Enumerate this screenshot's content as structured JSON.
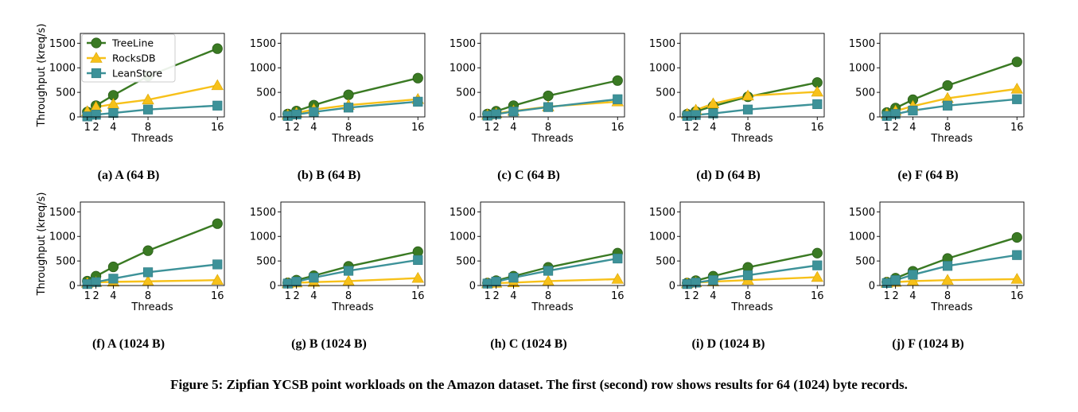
{
  "figure_caption": "Figure 5: Zipfian YCSB point workloads on the Amazon dataset. The first (second) row shows results for 64 (1024) byte records.",
  "colors": {
    "TreeLine": "#3a7a23",
    "RocksDB": "#f7c11a",
    "LeanStore": "#3d9299"
  },
  "markers": {
    "TreeLine": "circle",
    "RocksDB": "triangle",
    "LeanStore": "square"
  },
  "legend": {
    "placement": "top-left",
    "shown_in": "subplot (a)"
  },
  "chart_data": [
    {
      "id": "a",
      "caption": "(a) A (64 B)",
      "type": "line",
      "xlabel": "Threads",
      "ylabel": "Throughput (kreq/s)",
      "x": [
        1,
        2,
        4,
        8,
        16
      ],
      "x_ticks": [
        "1",
        "2",
        "4",
        "8",
        "16"
      ],
      "ylim": [
        0,
        1700
      ],
      "y_ticks": [
        "0",
        "500",
        "1000",
        "1500"
      ],
      "series": [
        {
          "name": "TreeLine",
          "values": [
            100,
            230,
            440,
            830,
            1390
          ]
        },
        {
          "name": "RocksDB",
          "values": [
            110,
            200,
            260,
            350,
            640
          ]
        },
        {
          "name": "LeanStore",
          "values": [
            10,
            45,
            80,
            150,
            230
          ]
        }
      ]
    },
    {
      "id": "b",
      "caption": "(b) B (64 B)",
      "type": "line",
      "xlabel": "Threads",
      "ylabel": "",
      "x": [
        1,
        2,
        4,
        8,
        16
      ],
      "x_ticks": [
        "1",
        "2",
        "4",
        "8",
        "16"
      ],
      "ylim": [
        0,
        1700
      ],
      "y_ticks": [
        "0",
        "500",
        "1000",
        "1500"
      ],
      "series": [
        {
          "name": "TreeLine",
          "values": [
            60,
            120,
            240,
            450,
            790
          ]
        },
        {
          "name": "RocksDB",
          "values": [
            40,
            80,
            150,
            240,
            360
          ]
        },
        {
          "name": "LeanStore",
          "values": [
            20,
            50,
            100,
            190,
            310
          ]
        }
      ]
    },
    {
      "id": "c",
      "caption": "(c) C (64 B)",
      "type": "line",
      "xlabel": "Threads",
      "ylabel": "",
      "x": [
        1,
        2,
        4,
        8,
        16
      ],
      "x_ticks": [
        "1",
        "2",
        "4",
        "8",
        "16"
      ],
      "ylim": [
        0,
        1700
      ],
      "y_ticks": [
        "0",
        "500",
        "1000",
        "1500"
      ],
      "series": [
        {
          "name": "TreeLine",
          "values": [
            60,
            115,
            230,
            430,
            740
          ]
        },
        {
          "name": "RocksDB",
          "values": [
            40,
            70,
            120,
            210,
            310
          ]
        },
        {
          "name": "LeanStore",
          "values": [
            25,
            55,
            110,
            200,
            360
          ]
        }
      ]
    },
    {
      "id": "d",
      "caption": "(d) D (64 B)",
      "type": "line",
      "xlabel": "Threads",
      "ylabel": "",
      "x": [
        1,
        2,
        4,
        8,
        16
      ],
      "x_ticks": [
        "1",
        "2",
        "4",
        "8",
        "16"
      ],
      "ylim": [
        0,
        1700
      ],
      "y_ticks": [
        "0",
        "500",
        "1000",
        "1500"
      ],
      "series": [
        {
          "name": "TreeLine",
          "values": [
            55,
            110,
            220,
            410,
            700
          ]
        },
        {
          "name": "RocksDB",
          "values": [
            60,
            140,
            270,
            430,
            510
          ]
        },
        {
          "name": "LeanStore",
          "values": [
            20,
            40,
            70,
            150,
            260
          ]
        }
      ]
    },
    {
      "id": "e",
      "caption": "(e) F (64 B)",
      "type": "line",
      "xlabel": "Threads",
      "ylabel": "",
      "x": [
        1,
        2,
        4,
        8,
        16
      ],
      "x_ticks": [
        "1",
        "2",
        "4",
        "8",
        "16"
      ],
      "ylim": [
        0,
        1700
      ],
      "y_ticks": [
        "0",
        "500",
        "1000",
        "1500"
      ],
      "series": [
        {
          "name": "TreeLine",
          "values": [
            90,
            180,
            350,
            640,
            1120
          ]
        },
        {
          "name": "RocksDB",
          "values": [
            60,
            120,
            220,
            380,
            570
          ]
        },
        {
          "name": "LeanStore",
          "values": [
            20,
            60,
            130,
            230,
            360
          ]
        }
      ]
    },
    {
      "id": "f",
      "caption": "(f) A (1024 B)",
      "type": "line",
      "xlabel": "Threads",
      "ylabel": "Throughput (kreq/s)",
      "x": [
        1,
        2,
        4,
        8,
        16
      ],
      "x_ticks": [
        "1",
        "2",
        "4",
        "8",
        "16"
      ],
      "ylim": [
        0,
        1700
      ],
      "y_ticks": [
        "0",
        "500",
        "1000",
        "1500"
      ],
      "series": [
        {
          "name": "TreeLine",
          "values": [
            90,
            190,
            380,
            710,
            1260
          ]
        },
        {
          "name": "RocksDB",
          "values": [
            50,
            65,
            75,
            85,
            110
          ]
        },
        {
          "name": "LeanStore",
          "values": [
            30,
            70,
            140,
            270,
            430
          ]
        }
      ]
    },
    {
      "id": "g",
      "caption": "(g) B (1024 B)",
      "type": "line",
      "xlabel": "Threads",
      "ylabel": "",
      "x": [
        1,
        2,
        4,
        8,
        16
      ],
      "x_ticks": [
        "1",
        "2",
        "4",
        "8",
        "16"
      ],
      "ylim": [
        0,
        1700
      ],
      "y_ticks": [
        "0",
        "500",
        "1000",
        "1500"
      ],
      "series": [
        {
          "name": "TreeLine",
          "values": [
            55,
            110,
            200,
            390,
            690
          ]
        },
        {
          "name": "RocksDB",
          "values": [
            40,
            55,
            70,
            90,
            150
          ]
        },
        {
          "name": "LeanStore",
          "values": [
            40,
            80,
            160,
            300,
            520
          ]
        }
      ]
    },
    {
      "id": "h",
      "caption": "(h) C (1024 B)",
      "type": "line",
      "xlabel": "Threads",
      "ylabel": "",
      "x": [
        1,
        2,
        4,
        8,
        16
      ],
      "x_ticks": [
        "1",
        "2",
        "4",
        "8",
        "16"
      ],
      "ylim": [
        0,
        1700
      ],
      "y_ticks": [
        "0",
        "500",
        "1000",
        "1500"
      ],
      "series": [
        {
          "name": "TreeLine",
          "values": [
            50,
            100,
            190,
            370,
            660
          ]
        },
        {
          "name": "RocksDB",
          "values": [
            40,
            50,
            60,
            90,
            130
          ]
        },
        {
          "name": "LeanStore",
          "values": [
            40,
            80,
            160,
            300,
            550
          ]
        }
      ]
    },
    {
      "id": "i",
      "caption": "(i) D (1024 B)",
      "type": "line",
      "xlabel": "Threads",
      "ylabel": "",
      "x": [
        1,
        2,
        4,
        8,
        16
      ],
      "x_ticks": [
        "1",
        "2",
        "4",
        "8",
        "16"
      ],
      "ylim": [
        0,
        1700
      ],
      "y_ticks": [
        "0",
        "500",
        "1000",
        "1500"
      ],
      "series": [
        {
          "name": "TreeLine",
          "values": [
            50,
            100,
            190,
            370,
            660
          ]
        },
        {
          "name": "RocksDB",
          "values": [
            40,
            60,
            80,
            110,
            170
          ]
        },
        {
          "name": "LeanStore",
          "values": [
            30,
            60,
            110,
            210,
            410
          ]
        }
      ]
    },
    {
      "id": "j",
      "caption": "(j) F (1024 B)",
      "type": "line",
      "xlabel": "Threads",
      "ylabel": "",
      "x": [
        1,
        2,
        4,
        8,
        16
      ],
      "x_ticks": [
        "1",
        "2",
        "4",
        "8",
        "16"
      ],
      "ylim": [
        0,
        1700
      ],
      "y_ticks": [
        "0",
        "500",
        "1000",
        "1500"
      ],
      "series": [
        {
          "name": "TreeLine",
          "values": [
            70,
            150,
            290,
            550,
            980
          ]
        },
        {
          "name": "RocksDB",
          "values": [
            50,
            70,
            90,
            110,
            130
          ]
        },
        {
          "name": "LeanStore",
          "values": [
            50,
            110,
            220,
            400,
            620
          ]
        }
      ]
    }
  ]
}
